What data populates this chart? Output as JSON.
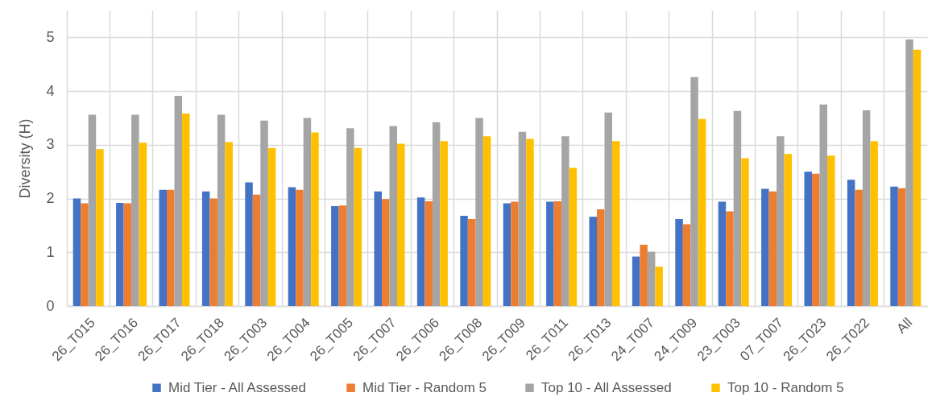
{
  "chart_data": {
    "type": "bar",
    "ylabel": "Diversity (H)",
    "categories": [
      "26_T015",
      "26_T016",
      "26_T017",
      "26_T018",
      "26_T003",
      "26_T004",
      "26_T005",
      "26_T007",
      "26_T006",
      "26_T008",
      "26_T009",
      "26_T011",
      "26_T013",
      "24_T007",
      "24_T009",
      "23_T003",
      "07_T007",
      "26_T023",
      "26_T022",
      "All"
    ],
    "series": [
      {
        "name": "Mid Tier - All Assessed",
        "color": "#4472c4",
        "values": [
          2.0,
          1.92,
          2.16,
          2.13,
          2.3,
          2.21,
          1.86,
          2.13,
          2.02,
          1.68,
          1.91,
          1.94,
          1.66,
          0.92,
          1.62,
          1.94,
          2.18,
          2.5,
          2.35,
          2.22
        ]
      },
      {
        "name": "Mid Tier - Random 5",
        "color": "#ed7d31",
        "values": [
          1.91,
          1.91,
          2.16,
          2.0,
          2.07,
          2.16,
          1.87,
          1.99,
          1.95,
          1.62,
          1.94,
          1.95,
          1.8,
          1.14,
          1.52,
          1.76,
          2.13,
          2.46,
          2.16,
          2.19
        ]
      },
      {
        "name": "Top 10 - All Assessed",
        "color": "#a5a5a5",
        "values": [
          3.56,
          3.56,
          3.91,
          3.56,
          3.45,
          3.5,
          3.31,
          3.35,
          3.42,
          3.5,
          3.24,
          3.16,
          3.6,
          1.01,
          4.26,
          3.63,
          3.16,
          3.75,
          3.64,
          4.96
        ]
      },
      {
        "name": "Top 10 - Random 5",
        "color": "#ffc000",
        "values": [
          2.92,
          3.04,
          3.58,
          3.05,
          2.94,
          3.23,
          2.94,
          3.02,
          3.07,
          3.16,
          3.11,
          2.57,
          3.07,
          0.73,
          3.48,
          2.75,
          2.83,
          2.8,
          3.07,
          4.77
        ]
      }
    ],
    "ylim": [
      0,
      5.5
    ],
    "yticks": [
      0,
      1,
      2,
      3,
      4,
      5
    ],
    "grid": true,
    "legend": "bottom"
  }
}
